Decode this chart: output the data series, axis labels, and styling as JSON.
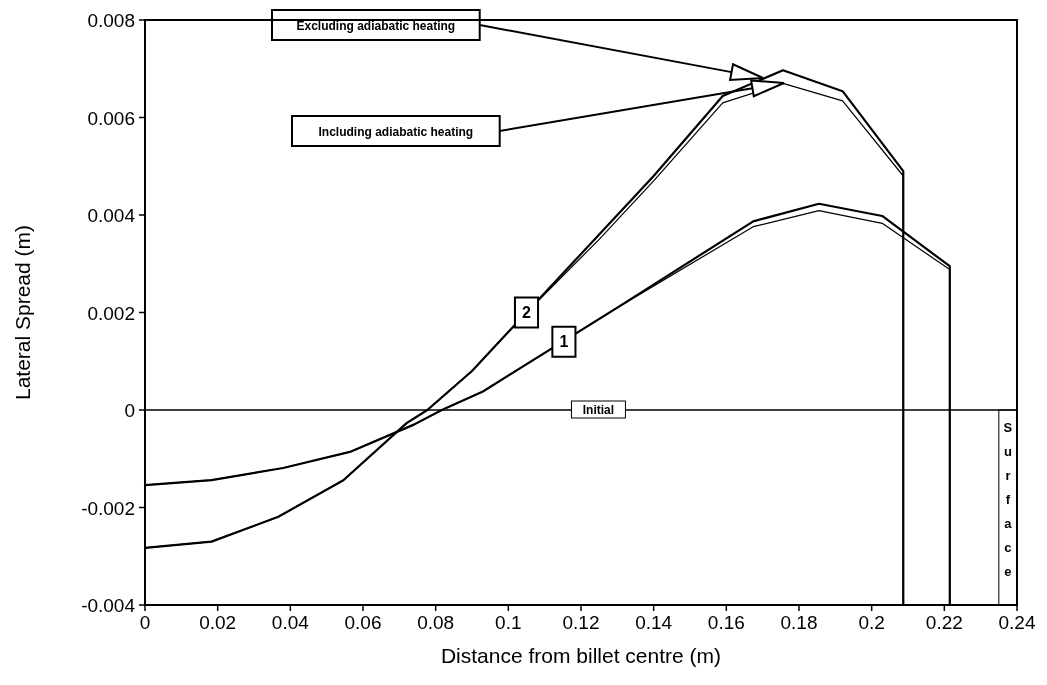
{
  "chart_data": {
    "type": "line",
    "xlabel": "Distance from billet centre (m)",
    "ylabel": "Lateral Spread (m)",
    "xlim": [
      0,
      0.24
    ],
    "xticks": [
      0,
      0.02,
      0.04,
      0.06,
      0.08,
      0.1,
      0.12,
      0.14,
      0.16,
      0.18,
      0.2,
      0.22,
      0.24
    ],
    "ylim": [
      -0.004,
      0.008
    ],
    "yticks": [
      -0.004,
      -0.002,
      0,
      0.002,
      0.004,
      0.006,
      0.008
    ],
    "grid": false,
    "line_style": "solid",
    "series": [
      {
        "color": "#000000",
        "x": [
          0,
          0.0183,
          0.0367,
          0.0546,
          0.072,
          0.0777,
          0.09,
          0.105,
          0.125,
          0.14,
          0.159,
          0.1756,
          0.192,
          0.2087,
          0.2087
        ],
        "values": [
          -0.00283,
          -0.0027,
          -0.00219,
          -0.00144,
          -0.00027,
          0,
          0.0008,
          0.002,
          0.0036,
          0.0048,
          0.00644,
          0.00697,
          0.00654,
          0.0049,
          -0.004
        ]
      },
      {
        "color": "#000000",
        "x": [
          0,
          0.0183,
          0.0367,
          0.0546,
          0.072,
          0.0777,
          0.09,
          0.105,
          0.125,
          0.14,
          0.159,
          0.1756,
          0.192,
          0.2087,
          0.2087
        ],
        "values": [
          -0.00283,
          -0.0027,
          -0.00219,
          -0.00144,
          -0.00027,
          0,
          0.0008,
          0.002,
          0.0035,
          0.0047,
          0.0063,
          0.0067,
          0.00634,
          0.0048,
          -0.004
        ]
      },
      {
        "color": "#000000",
        "x": [
          0,
          0.0183,
          0.038,
          0.0564,
          0.074,
          0.0817,
          0.093,
          0.13,
          0.1674,
          0.1855,
          0.2029,
          0.2215,
          0.2215
        ],
        "values": [
          -0.00154,
          -0.00144,
          -0.00119,
          -0.00086,
          -0.0003,
          0,
          0.00038,
          0.0021,
          0.00387,
          0.00423,
          0.00398,
          0.00295,
          -0.004
        ]
      },
      {
        "color": "#000000",
        "x": [
          0,
          0.0183,
          0.038,
          0.0564,
          0.074,
          0.0817,
          0.093,
          0.13,
          0.1674,
          0.1855,
          0.2029,
          0.2215,
          0.2215
        ],
        "values": [
          -0.00154,
          -0.00144,
          -0.00119,
          -0.00086,
          -0.0003,
          0,
          0.00038,
          0.0021,
          0.00376,
          0.00409,
          0.00383,
          0.00288,
          -0.004
        ]
      }
    ],
    "ref_lines": [
      {
        "axis": "y",
        "value": 0,
        "label": "Initial"
      }
    ],
    "bands": [
      {
        "axis": "x",
        "from": 0.235,
        "to": 0.24,
        "label": "Surface",
        "color": "#ffffff"
      }
    ],
    "annotations": [
      "Excluding adiabatic heating",
      "Including adiabatic heating",
      {
        "text": "2",
        "x": 0.105,
        "y": 0.002
      },
      {
        "text": "1",
        "x": 0.1153,
        "y": 0.0014
      }
    ]
  }
}
